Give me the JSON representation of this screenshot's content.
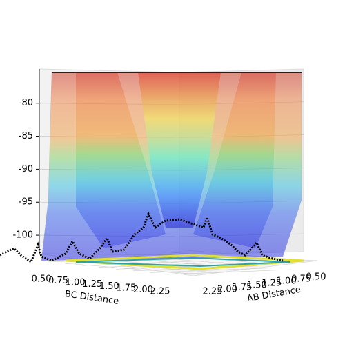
{
  "chart_data": {
    "type": "surface3d",
    "xlabel": "BC Distance",
    "ylabel": "AB Distance",
    "xticks": [
      {
        "value": 0.5,
        "label": "0.50"
      },
      0.75,
      {
        "value": 1.0,
        "label": "1.00"
      },
      1.25,
      {
        "value": 1.5,
        "label": "1.50"
      },
      1.75,
      {
        "value": 2.0,
        "label": "2.00"
      },
      2.25
    ],
    "yticks": [
      2.25,
      {
        "value": 2.0,
        "label": "2.00"
      },
      1.75,
      {
        "value": 1.5,
        "label": "1.50"
      },
      1.25,
      {
        "value": 1.0,
        "label": "1.00"
      },
      0.75,
      {
        "value": 0.5,
        "label": "0.50"
      }
    ],
    "zlim": [
      -102.5,
      -74.8
    ],
    "zticks": [
      -80,
      -85,
      -90,
      -95,
      -100
    ],
    "colormap": "jet"
  }
}
